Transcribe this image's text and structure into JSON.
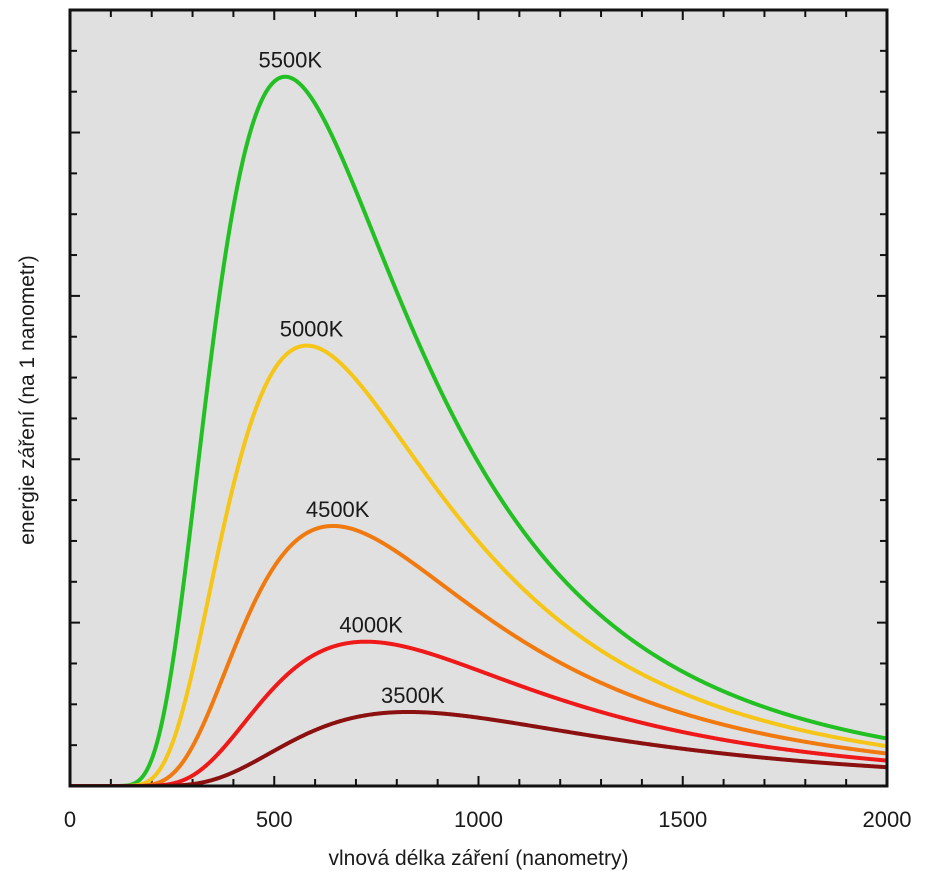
{
  "chart_data": {
    "type": "line",
    "title": "",
    "xlabel": "vlnová délka záření (nanometry)",
    "ylabel": "energie záření (na 1 nanometr)",
    "xlim": [
      0,
      2000
    ],
    "x_ticks": [
      0,
      500,
      1000,
      1500,
      2000
    ],
    "x_tick_labels": [
      "0",
      "500",
      "1000",
      "1500",
      "2000"
    ],
    "y_tick_labels_shown": false,
    "grid": false,
    "legend": "none (curves labelled directly at their peaks)",
    "background": "#e0e0e0",
    "series": [
      {
        "name": "5500K",
        "temperature_K": 5500,
        "color": "#22c022"
      },
      {
        "name": "5000K",
        "temperature_K": 5000,
        "color": "#f5c518"
      },
      {
        "name": "4500K",
        "temperature_K": 4500,
        "color": "#f07a10"
      },
      {
        "name": "4000K",
        "temperature_K": 4000,
        "color": "#ee1a1a"
      },
      {
        "name": "3500K",
        "temperature_K": 3500,
        "color": "#8b1010"
      }
    ]
  }
}
